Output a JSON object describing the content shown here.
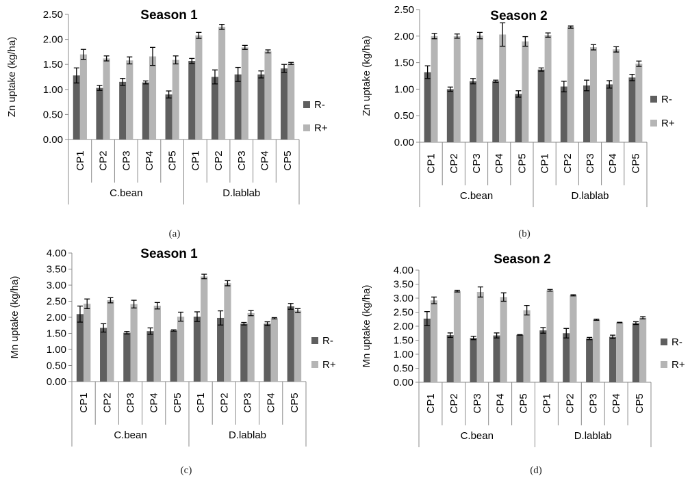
{
  "chart_data": [
    {
      "type": "bar",
      "title": "Season 1",
      "ylabel": "Zn uptake (kg/ha)",
      "caption": "(a)",
      "ylim": [
        0,
        2.5
      ],
      "yticks": [
        "0.00",
        "0.50",
        "1.00",
        "1.50",
        "2.00",
        "2.50"
      ],
      "categories": [
        "CP1",
        "CP2",
        "CP3",
        "CP4",
        "CP5",
        "CP1",
        "CP2",
        "CP3",
        "CP4",
        "CP5"
      ],
      "groups": [
        {
          "label": "C.bean",
          "count": 5
        },
        {
          "label": "D.lablab",
          "count": 5
        }
      ],
      "legend_position": "right",
      "series": [
        {
          "name": "R-",
          "color": "#5f5f5f",
          "values": [
            1.28,
            1.03,
            1.15,
            1.14,
            0.9,
            1.57,
            1.25,
            1.3,
            1.3,
            1.42
          ],
          "errors": [
            0.15,
            0.05,
            0.07,
            0.03,
            0.07,
            0.05,
            0.14,
            0.14,
            0.07,
            0.08
          ]
        },
        {
          "name": "R+",
          "color": "#b5b5b5",
          "values": [
            1.7,
            1.62,
            1.58,
            1.66,
            1.59,
            2.08,
            2.25,
            1.84,
            1.76,
            1.52
          ],
          "errors": [
            0.1,
            0.05,
            0.07,
            0.18,
            0.08,
            0.06,
            0.05,
            0.04,
            0.03,
            0.02
          ]
        }
      ]
    },
    {
      "type": "bar",
      "title": "Season 2",
      "ylabel": "Zn uptake (kg/ha)",
      "caption": "(b)",
      "ylim": [
        0,
        2.5
      ],
      "yticks": [
        "0.00",
        "0.50",
        "1.00",
        "1.50",
        "2.00",
        "2.50"
      ],
      "categories": [
        "CP1",
        "CP2",
        "CP3",
        "CP4",
        "CP5",
        "CP1",
        "CP2",
        "CP3",
        "CP4",
        "CP5"
      ],
      "groups": [
        {
          "label": "C.bean",
          "count": 5
        },
        {
          "label": "D.lablab",
          "count": 5
        }
      ],
      "legend_position": "right",
      "series": [
        {
          "name": "R-",
          "color": "#5f5f5f",
          "values": [
            1.32,
            1.0,
            1.15,
            1.15,
            0.91,
            1.37,
            1.05,
            1.07,
            1.09,
            1.22
          ],
          "errors": [
            0.12,
            0.04,
            0.05,
            0.02,
            0.06,
            0.03,
            0.1,
            0.1,
            0.07,
            0.06
          ]
        },
        {
          "name": "R+",
          "color": "#b5b5b5",
          "values": [
            2.0,
            2.0,
            2.01,
            2.03,
            1.9,
            2.02,
            2.17,
            1.79,
            1.75,
            1.48
          ],
          "errors": [
            0.05,
            0.04,
            0.06,
            0.22,
            0.09,
            0.04,
            0.02,
            0.05,
            0.05,
            0.05
          ]
        }
      ]
    },
    {
      "type": "bar",
      "title": "Season 1",
      "ylabel": "Mn uptake (kg/ha)",
      "caption": "(c)",
      "ylim": [
        0,
        4
      ],
      "yticks": [
        "0.00",
        "0.50",
        "1.00",
        "1.50",
        "2.00",
        "2.50",
        "3.00",
        "3.50",
        "4.00"
      ],
      "categories": [
        "CP1",
        "CP2",
        "CP3",
        "CP4",
        "CP5",
        "CP1",
        "CP2",
        "CP3",
        "CP4",
        "CP5"
      ],
      "groups": [
        {
          "label": "C.bean",
          "count": 5
        },
        {
          "label": "D.lablab",
          "count": 5
        }
      ],
      "legend_position": "right",
      "series": [
        {
          "name": "R-",
          "color": "#5f5f5f",
          "values": [
            2.1,
            1.67,
            1.52,
            1.57,
            1.59,
            2.02,
            1.98,
            1.8,
            1.8,
            2.34
          ],
          "errors": [
            0.25,
            0.13,
            0.04,
            0.1,
            0.02,
            0.15,
            0.22,
            0.04,
            0.06,
            0.09
          ]
        },
        {
          "name": "R+",
          "color": "#b5b5b5",
          "values": [
            2.42,
            2.53,
            2.41,
            2.36,
            2.02,
            3.27,
            3.06,
            2.13,
            1.97,
            2.21
          ],
          "errors": [
            0.15,
            0.08,
            0.12,
            0.1,
            0.14,
            0.07,
            0.08,
            0.08,
            0.02,
            0.06
          ]
        }
      ]
    },
    {
      "type": "bar",
      "title": "Season 2",
      "ylabel": "Mn uptake (kg/ha)",
      "caption": "(d)",
      "ylim": [
        0,
        4
      ],
      "yticks": [
        "0.00",
        "0.50",
        "1.00",
        "1.50",
        "2.00",
        "2.50",
        "3.00",
        "3.50",
        "4.00"
      ],
      "categories": [
        "CP1",
        "CP2",
        "CP3",
        "CP4",
        "CP5",
        "CP1",
        "CP2",
        "CP3",
        "CP4",
        "CP5"
      ],
      "groups": [
        {
          "label": "C.bean",
          "count": 5
        },
        {
          "label": "D.lablab",
          "count": 5
        }
      ],
      "legend_position": "right",
      "series": [
        {
          "name": "R-",
          "color": "#5f5f5f",
          "values": [
            2.27,
            1.68,
            1.58,
            1.67,
            1.69,
            1.85,
            1.75,
            1.56,
            1.62,
            2.11
          ],
          "errors": [
            0.25,
            0.08,
            0.06,
            0.09,
            0.01,
            0.1,
            0.17,
            0.04,
            0.06,
            0.05
          ]
        },
        {
          "name": "R+",
          "color": "#b5b5b5",
          "values": [
            2.92,
            3.25,
            3.22,
            3.04,
            2.57,
            3.28,
            3.1,
            2.23,
            2.13,
            2.3
          ],
          "errors": [
            0.12,
            0.03,
            0.18,
            0.15,
            0.17,
            0.03,
            0.02,
            0.02,
            0.01,
            0.04
          ]
        }
      ]
    }
  ]
}
